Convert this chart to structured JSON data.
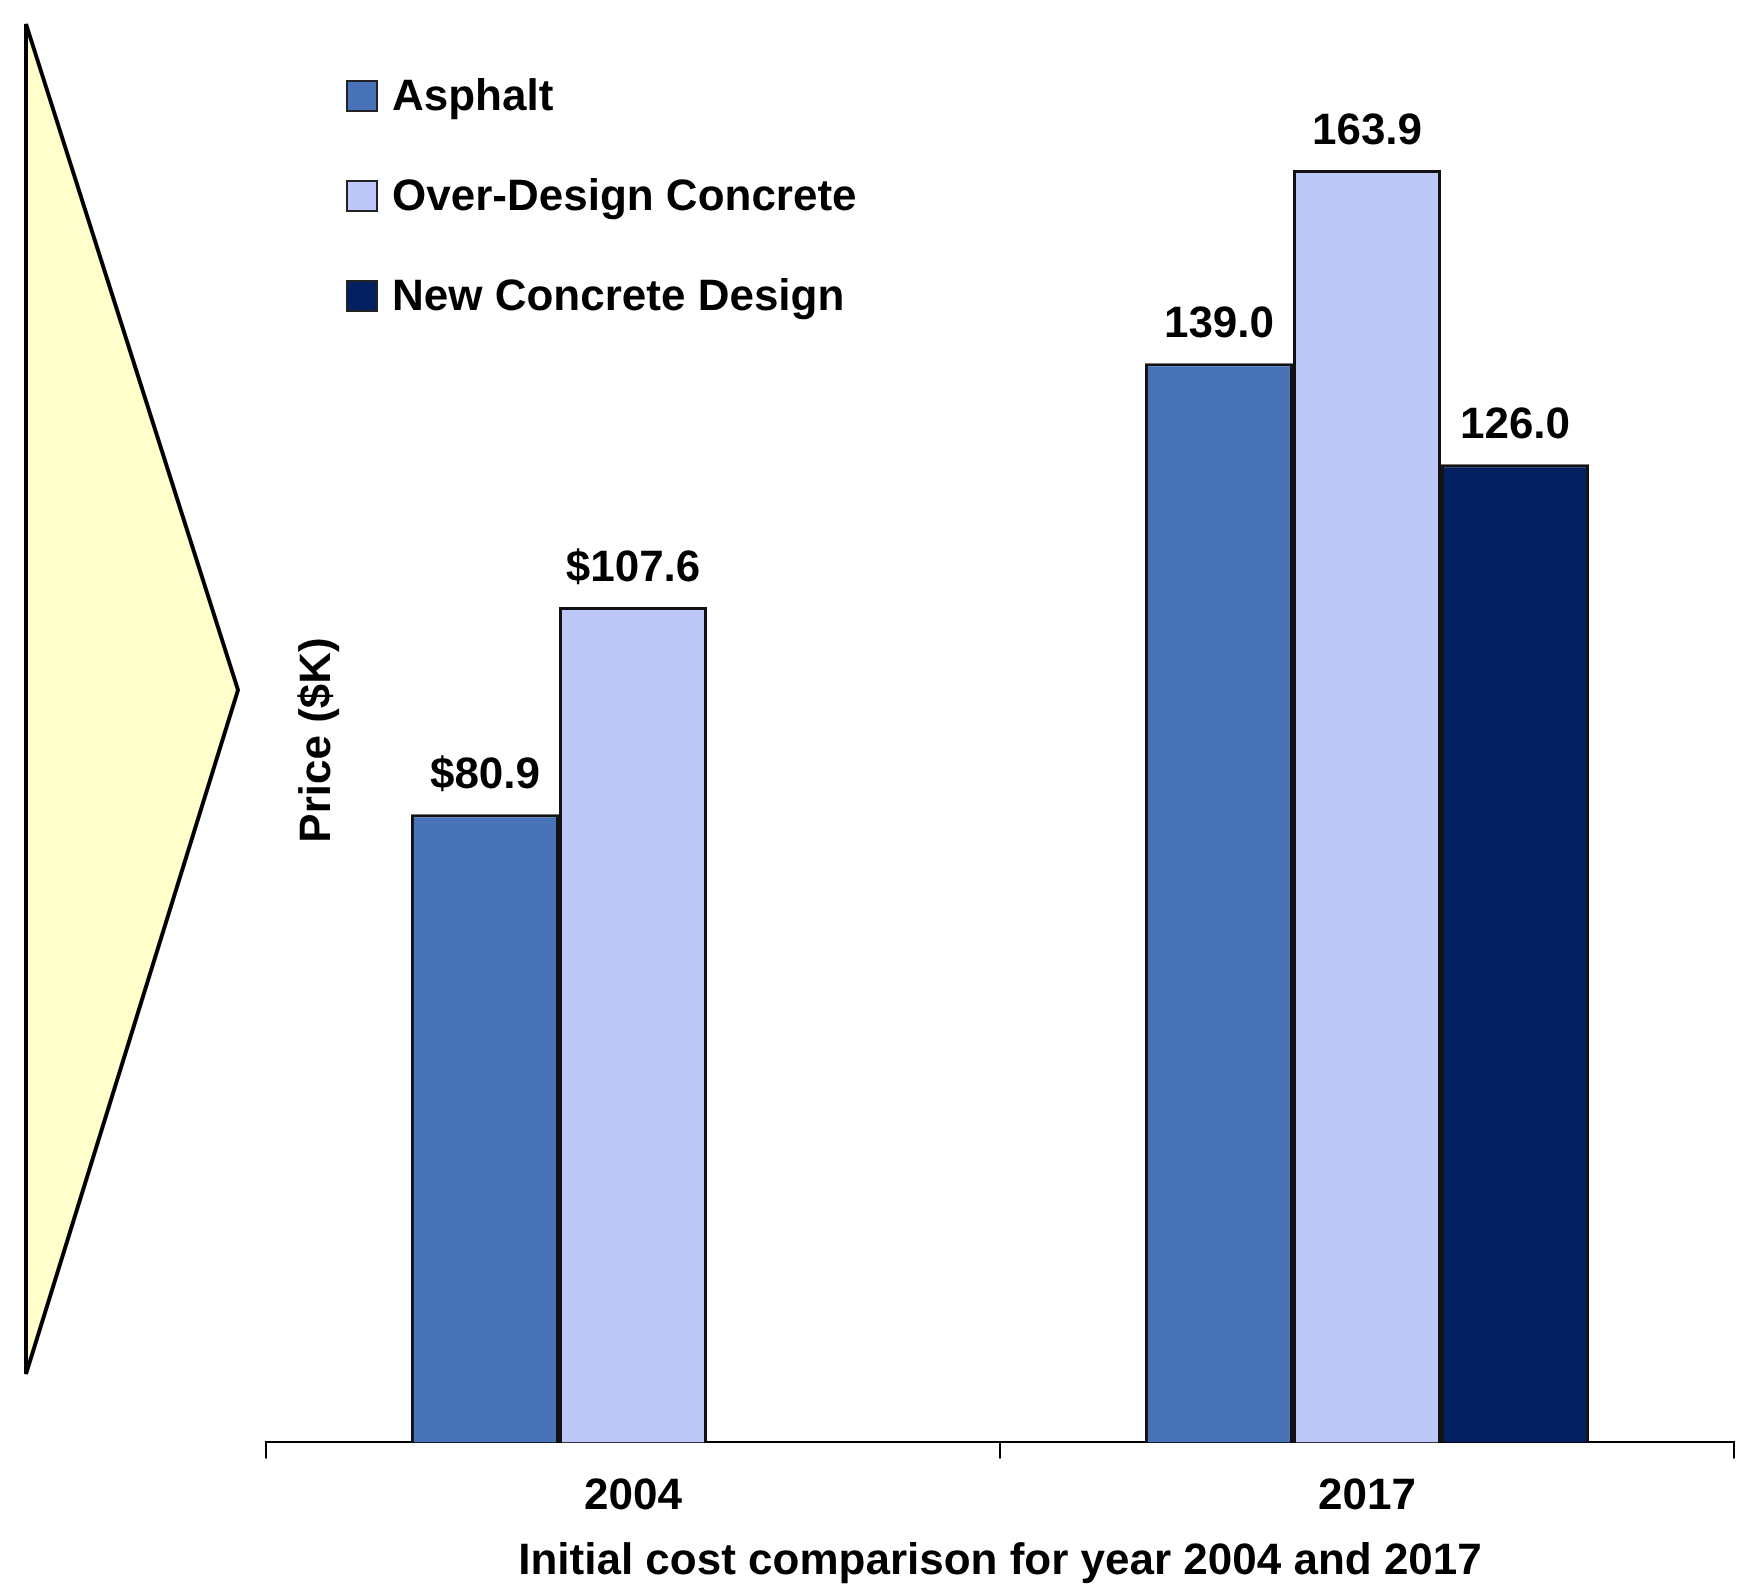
{
  "chart_data": {
    "type": "bar",
    "xlabel": "Initial cost comparison for year 2004 and 2017",
    "ylabel": "Price ($K)",
    "legend": "top left",
    "categories": [
      "2004",
      "2017"
    ],
    "series": [
      {
        "name": "Asphalt",
        "color": "#4873b9",
        "values": [
          80.9,
          139.0
        ],
        "value_labels": [
          "$80.9",
          "139.0"
        ]
      },
      {
        "name": "Over-Design Concrete",
        "color": "#bec8f8",
        "values": [
          107.6,
          163.9
        ],
        "value_labels": [
          "$107.6",
          "163.9"
        ]
      },
      {
        "name": "New Concrete Design",
        "color": "#022060",
        "values": [
          null,
          126.0
        ],
        "value_labels": [
          null,
          "126.0"
        ]
      }
    ]
  }
}
